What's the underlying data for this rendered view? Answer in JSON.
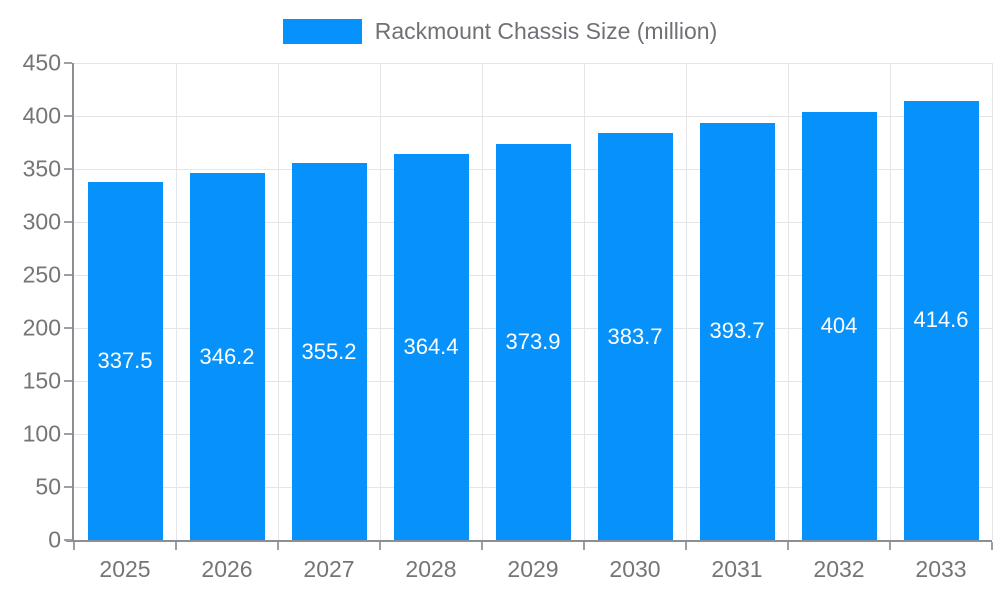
{
  "legend": {
    "label": "Rackmount Chassis Size (million)"
  },
  "chart_data": {
    "type": "bar",
    "title": "Rackmount Chassis Size (million)",
    "legend_position": "top",
    "categories": [
      "2025",
      "2026",
      "2027",
      "2028",
      "2029",
      "2030",
      "2031",
      "2032",
      "2033"
    ],
    "values": [
      337.5,
      346.2,
      355.2,
      364.4,
      373.9,
      383.7,
      393.7,
      404,
      414.6
    ],
    "value_labels": [
      "337.5",
      "346.2",
      "355.2",
      "364.4",
      "373.9",
      "383.7",
      "393.7",
      "404",
      "414.6"
    ],
    "xlabel": "",
    "ylabel": "",
    "ylim": [
      0,
      450
    ],
    "y_tick_step": 50,
    "y_tick_labels": [
      "0",
      "50",
      "100",
      "150",
      "200",
      "250",
      "300",
      "350",
      "400",
      "450"
    ],
    "grid": true,
    "colors": {
      "bar": "#0691fb",
      "grid": "#e4e4e9",
      "axis": "#8b8f94",
      "tick": "#9aa0a6",
      "tick_text": "#757575",
      "value_text": "#ffffff",
      "background": "#ffffff"
    }
  }
}
